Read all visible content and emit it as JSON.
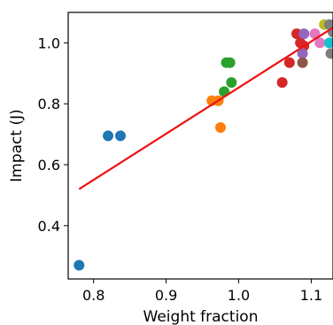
{
  "chart_data": {
    "type": "scatter",
    "title": "",
    "xlabel": "Weight fraction",
    "ylabel": "Impact (J)",
    "xlim": [
      0.765,
      1.13
    ],
    "ylim": [
      0.225,
      1.1
    ],
    "xticks": [
      0.8,
      0.9,
      1.0,
      1.1
    ],
    "yticks": [
      0.4,
      0.6,
      0.8,
      1.0
    ],
    "x_tick_labels": [
      "0.8",
      "0.9",
      "1.0",
      "1.1"
    ],
    "y_tick_labels": [
      "0.4",
      "0.6",
      "0.8",
      "1.0"
    ],
    "grid": false,
    "legend": "none",
    "points": [
      {
        "x": 0.78,
        "y": 0.27,
        "color": "#1f77b4"
      },
      {
        "x": 0.82,
        "y": 0.695,
        "color": "#1f77b4"
      },
      {
        "x": 0.837,
        "y": 0.695,
        "color": "#1f77b4"
      },
      {
        "x": 0.963,
        "y": 0.81,
        "color": "#ff7f0e"
      },
      {
        "x": 0.972,
        "y": 0.81,
        "color": "#ff7f0e"
      },
      {
        "x": 0.975,
        "y": 0.722,
        "color": "#ff7f0e"
      },
      {
        "x": 0.98,
        "y": 0.84,
        "color": "#2ca02c"
      },
      {
        "x": 0.983,
        "y": 0.935,
        "color": "#2ca02c"
      },
      {
        "x": 0.988,
        "y": 0.935,
        "color": "#2ca02c"
      },
      {
        "x": 0.99,
        "y": 0.87,
        "color": "#2ca02c"
      },
      {
        "x": 1.06,
        "y": 0.87,
        "color": "#d62728"
      },
      {
        "x": 1.07,
        "y": 0.935,
        "color": "#d62728"
      },
      {
        "x": 1.08,
        "y": 1.03,
        "color": "#d62728"
      },
      {
        "x": 1.085,
        "y": 1.0,
        "color": "#d62728"
      },
      {
        "x": 1.09,
        "y": 0.99,
        "color": "#d62728"
      },
      {
        "x": 1.088,
        "y": 0.965,
        "color": "#9467bd"
      },
      {
        "x": 1.09,
        "y": 1.03,
        "color": "#9467bd"
      },
      {
        "x": 1.088,
        "y": 0.935,
        "color": "#8c564b"
      },
      {
        "x": 1.105,
        "y": 1.03,
        "color": "#e377c2"
      },
      {
        "x": 1.112,
        "y": 1.0,
        "color": "#e377c2"
      },
      {
        "x": 1.118,
        "y": 1.06,
        "color": "#bcbd22"
      },
      {
        "x": 1.125,
        "y": 1.06,
        "color": "#7f7f7f"
      },
      {
        "x": 1.132,
        "y": 1.06,
        "color": "#7f7f7f"
      },
      {
        "x": 1.13,
        "y": 1.035,
        "color": "#7f7f7f"
      },
      {
        "x": 1.127,
        "y": 0.965,
        "color": "#7f7f7f"
      },
      {
        "x": 1.125,
        "y": 1.0,
        "color": "#17becf"
      }
    ],
    "fit_line": {
      "x": [
        0.78,
        1.13
      ],
      "y": [
        0.52,
        1.05
      ],
      "color": "#ee1111"
    }
  }
}
